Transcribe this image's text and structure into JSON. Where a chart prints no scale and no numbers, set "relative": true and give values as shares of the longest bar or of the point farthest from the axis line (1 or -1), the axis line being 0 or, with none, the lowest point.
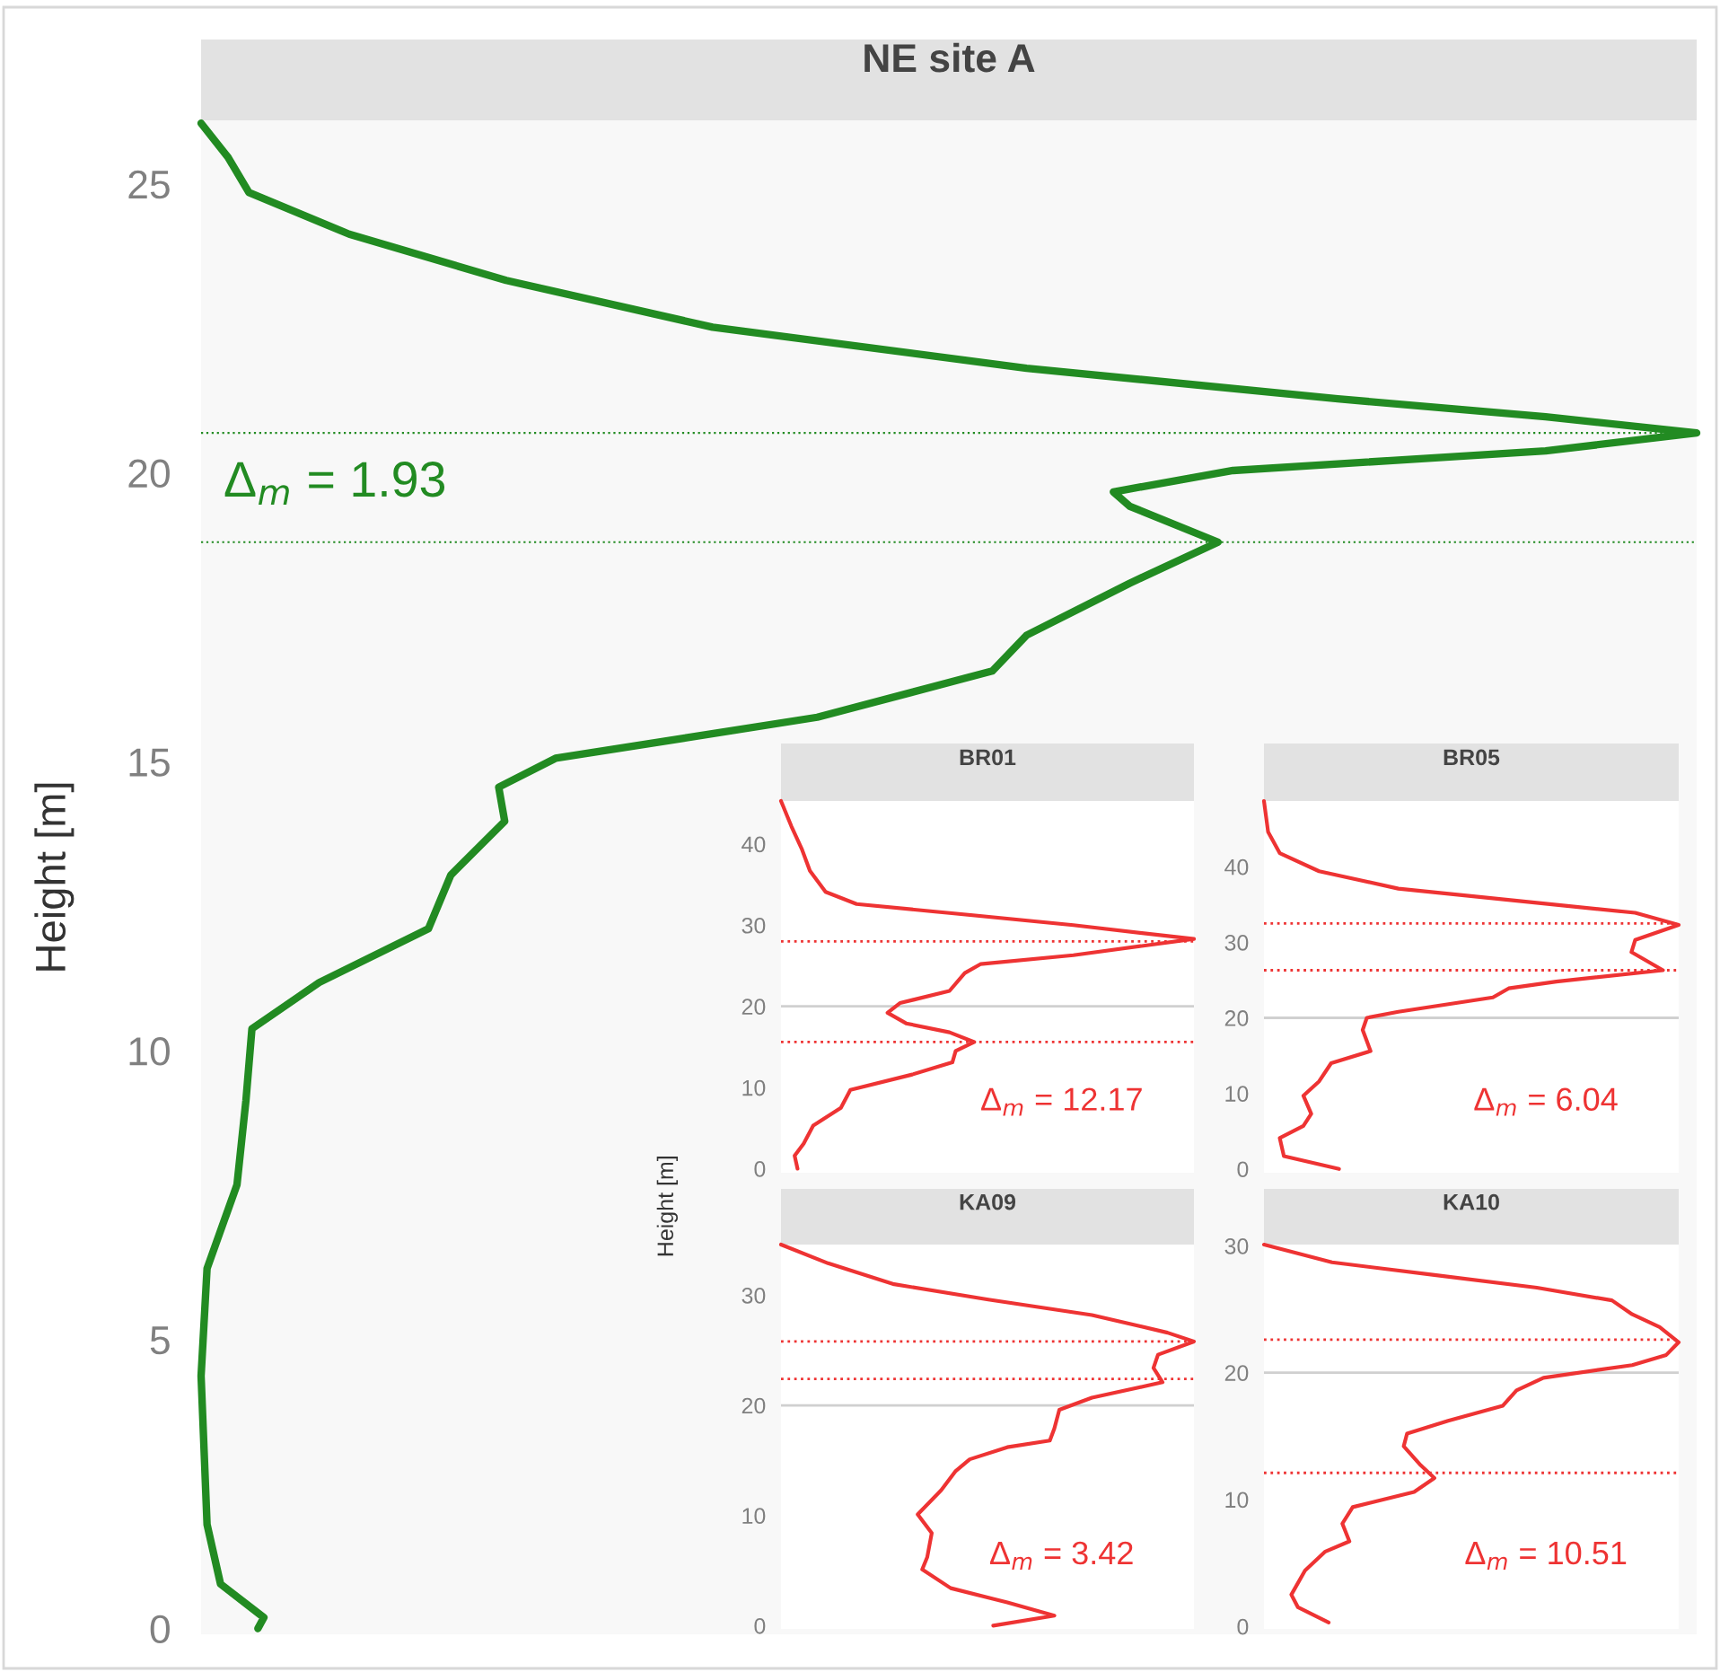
{
  "chart_data": [
    {
      "type": "line",
      "orientation": "horizontal",
      "relative": true,
      "title": "NE site A",
      "ylabel": "Height [m]",
      "line_style": "solid",
      "x": [
        26.05,
        25.46,
        24.85,
        24.13,
        23.33,
        22.52,
        21.81,
        21.28,
        20.97,
        20.69,
        20.38,
        20.04,
        19.67,
        19.42,
        18.8,
        18.09,
        17.19,
        16.57,
        15.77,
        15.06,
        14.56,
        13.97,
        13.04,
        12.11,
        11.18,
        10.38,
        9.14,
        7.68,
        6.23,
        4.37,
        1.8,
        0.77,
        0.19,
        0.0
      ],
      "series": [
        {
          "color": "#228b22",
          "values": [
            0,
            0.018,
            0.032,
            0.099,
            0.204,
            0.342,
            0.552,
            0.76,
            0.899,
            1.0,
            0.899,
            0.69,
            0.61,
            0.621,
            0.68,
            0.621,
            0.552,
            0.529,
            0.412,
            0.237,
            0.199,
            0.203,
            0.167,
            0.152,
            0.079,
            0.034,
            0.03,
            0.024,
            0.004,
            0.0,
            0.004,
            0.013,
            0.042,
            0.038
          ]
        }
      ],
      "ylim": [
        -0.1,
        26.1
      ],
      "yticks": [
        0,
        5,
        10,
        15,
        20,
        25
      ],
      "ref_lines": [
        {
          "axis": "y",
          "value": 20.69,
          "color": "#228b22",
          "line_style": "dotted"
        },
        {
          "axis": "y",
          "value": 18.8,
          "color": "#228b22",
          "line_style": "dotted"
        }
      ],
      "annotations": [
        "Δ$_{m}$ = 1.93"
      ]
    },
    {
      "type": "line",
      "orientation": "horizontal",
      "relative": true,
      "title": "BR01",
      "ylabel": "Height [m]",
      "line_style": "solid",
      "x": [
        45.3,
        42.2,
        39.3,
        36.7,
        34.1,
        32.6,
        31.5,
        30.0,
        28.3,
        26.3,
        25.2,
        24.1,
        21.9,
        20.4,
        19.2,
        17.9,
        16.8,
        15.6,
        14.5,
        13.1,
        11.6,
        9.7,
        7.5,
        5.3,
        3.1,
        1.6,
        0
      ],
      "series": [
        {
          "color": "#ee3333",
          "values": [
            0,
            0.025,
            0.051,
            0.07,
            0.108,
            0.183,
            0.408,
            0.708,
            1.0,
            0.708,
            0.483,
            0.445,
            0.408,
            0.288,
            0.258,
            0.303,
            0.408,
            0.468,
            0.423,
            0.415,
            0.318,
            0.168,
            0.145,
            0.078,
            0.055,
            0.033,
            0.04
          ]
        }
      ],
      "ylim": [
        -0.5,
        45.3
      ],
      "yticks": [
        0,
        10,
        20,
        30,
        40
      ],
      "ref_lines": [
        {
          "axis": "y",
          "value": 20,
          "color": "#d0d0d0",
          "line_style": "solid"
        },
        {
          "axis": "y",
          "value": 28.0,
          "color": "#ee3333",
          "line_style": "dotted"
        },
        {
          "axis": "y",
          "value": 15.6,
          "color": "#ee3333",
          "line_style": "dotted"
        }
      ],
      "annotations": [
        "Δ$_{m}$ = 12.17"
      ]
    },
    {
      "type": "line",
      "orientation": "horizontal",
      "relative": true,
      "title": "BR05",
      "line_style": "solid",
      "x": [
        48.7,
        44.6,
        41.8,
        39.4,
        37.1,
        35.5,
        33.9,
        32.3,
        30.3,
        28.7,
        26.3,
        24.8,
        23.9,
        22.7,
        20.8,
        20.0,
        18.4,
        15.6,
        14.0,
        11.6,
        9.7,
        7.3,
        5.7,
        4.1,
        1.7,
        0
      ],
      "series": [
        {
          "color": "#ee3333",
          "values": [
            0,
            0.01,
            0.038,
            0.133,
            0.324,
            0.61,
            0.895,
            1.0,
            0.895,
            0.886,
            0.962,
            0.705,
            0.59,
            0.552,
            0.324,
            0.248,
            0.238,
            0.257,
            0.162,
            0.133,
            0.095,
            0.114,
            0.095,
            0.038,
            0.048,
            0.181
          ]
        }
      ],
      "ylim": [
        -0.5,
        48.7
      ],
      "yticks": [
        0,
        10,
        20,
        30,
        40
      ],
      "ref_lines": [
        {
          "axis": "y",
          "value": 20,
          "color": "#d0d0d0",
          "line_style": "solid"
        },
        {
          "axis": "y",
          "value": 32.5,
          "color": "#ee3333",
          "line_style": "dotted"
        },
        {
          "axis": "y",
          "value": 26.3,
          "color": "#ee3333",
          "line_style": "dotted"
        }
      ],
      "annotations": [
        "Δ$_{m}$ = 6.04"
      ]
    },
    {
      "type": "line",
      "orientation": "horizontal",
      "relative": true,
      "title": "KA09",
      "line_style": "solid",
      "x": [
        34.6,
        32.9,
        31.0,
        29.6,
        28.2,
        26.6,
        25.8,
        24.6,
        23.4,
        22.1,
        20.7,
        19.6,
        17.9,
        16.8,
        16.2,
        15.1,
        14.0,
        12.3,
        10.1,
        8.4,
        6.2,
        5.1,
        3.4,
        2.1,
        0.9,
        0
      ],
      "series": [
        {
          "color": "#ee3333",
          "values": [
            0,
            0.114,
            0.274,
            0.502,
            0.753,
            0.936,
            1.0,
            0.913,
            0.902,
            0.924,
            0.753,
            0.674,
            0.662,
            0.651,
            0.548,
            0.457,
            0.422,
            0.388,
            0.331,
            0.365,
            0.354,
            0.342,
            0.411,
            0.548,
            0.662,
            0.514
          ]
        }
      ],
      "ylim": [
        -0.3,
        34.6
      ],
      "yticks": [
        0,
        10,
        20,
        30
      ],
      "ref_lines": [
        {
          "axis": "y",
          "value": 20,
          "color": "#d0d0d0",
          "line_style": "solid"
        },
        {
          "axis": "y",
          "value": 25.8,
          "color": "#ee3333",
          "line_style": "dotted"
        },
        {
          "axis": "y",
          "value": 22.4,
          "color": "#ee3333",
          "line_style": "dotted"
        }
      ],
      "annotations": [
        "Δ$_{m}$ = 3.42"
      ]
    },
    {
      "type": "line",
      "orientation": "horizontal",
      "relative": true,
      "title": "KA10",
      "line_style": "solid",
      "x": [
        30.1,
        28.7,
        27.7,
        26.7,
        25.7,
        24.6,
        23.6,
        22.4,
        21.4,
        20.6,
        19.6,
        18.6,
        17.4,
        16.2,
        15.2,
        14.2,
        12.7,
        11.7,
        10.6,
        9.4,
        8.1,
        6.7,
        5.9,
        4.4,
        2.5,
        1.5,
        0.3
      ],
      "series": [
        {
          "color": "#ee3333",
          "values": [
            0,
            0.164,
            0.411,
            0.658,
            0.839,
            0.888,
            0.954,
            1.0,
            0.97,
            0.888,
            0.674,
            0.609,
            0.576,
            0.444,
            0.345,
            0.337,
            0.378,
            0.411,
            0.362,
            0.214,
            0.189,
            0.206,
            0.148,
            0.099,
            0.066,
            0.082,
            0.156
          ]
        }
      ],
      "ylim": [
        -0.2,
        30.1
      ],
      "yticks": [
        0,
        10,
        20,
        30
      ],
      "ref_lines": [
        {
          "axis": "y",
          "value": 20,
          "color": "#d0d0d0",
          "line_style": "solid"
        },
        {
          "axis": "y",
          "value": 22.6,
          "color": "#ee3333",
          "line_style": "dotted"
        },
        {
          "axis": "y",
          "value": 12.1,
          "color": "#ee3333",
          "line_style": "dotted"
        }
      ],
      "annotations": [
        "Δ$_{m}$ = 10.51"
      ]
    }
  ]
}
